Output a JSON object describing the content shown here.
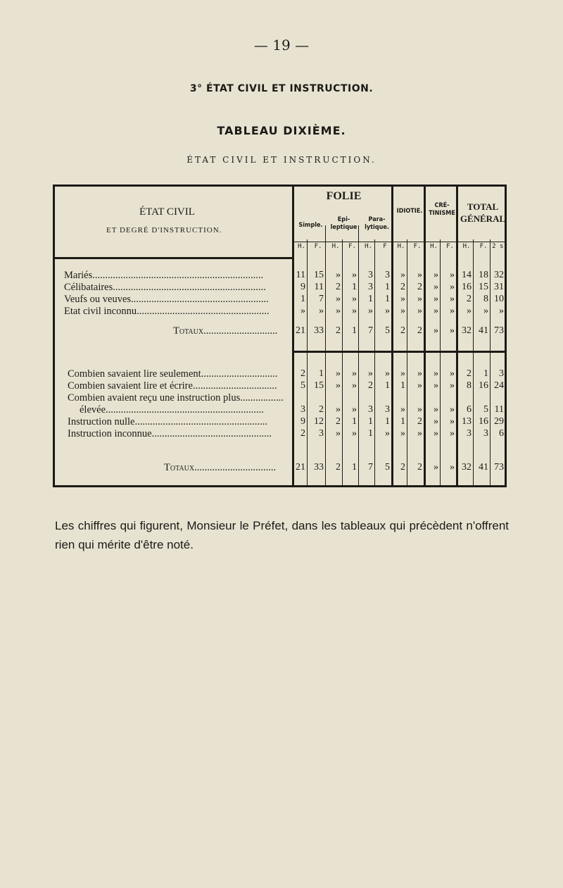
{
  "page_number": "— 19 —",
  "section_heading": "3° ÉTAT CIVIL ET INSTRUCTION.",
  "table_title": "TABLEAU DIXIÈME.",
  "table_subtitle": "ÉTAT CIVIL ET INSTRUCTION.",
  "table": {
    "stub_header_1": "ÉTAT CIVIL",
    "stub_header_2": "ET DEGRÉ D'INSTRUCTION.",
    "group_folie": "FOLIE",
    "sub_simple": "Simple.",
    "sub_epileptique": "Epi-\nleptique",
    "sub_paralytique": "Para-\nlytique.",
    "group_idiotie": "IDIOTIE.",
    "group_cretinisme": "CRÉ-\nTINISME",
    "group_total": "TOTAL\nGÉNÉRAL",
    "col_sex": [
      "H.",
      "F.",
      "H.",
      "F.",
      "H.",
      "F",
      "H.",
      "F.",
      "H.",
      "F.",
      "H.",
      "F.",
      "2 s."
    ],
    "section1": [
      {
        "label": "Mariés",
        "values": [
          "11",
          "15",
          "»",
          "»",
          "3",
          "3",
          "»",
          "»",
          "»",
          "»",
          "14",
          "18",
          "32"
        ]
      },
      {
        "label": "Célibataires",
        "values": [
          "9",
          "11",
          "2",
          "1",
          "3",
          "1",
          "2",
          "2",
          "»",
          "»",
          "16",
          "15",
          "31"
        ]
      },
      {
        "label": "Veufs ou veuves",
        "values": [
          "1",
          "7",
          "»",
          "»",
          "1",
          "1",
          "»",
          "»",
          "»",
          "»",
          "2",
          "8",
          "10"
        ]
      },
      {
        "label": "Etat civil inconnu",
        "values": [
          "»",
          "»",
          "»",
          "»",
          "»",
          "»",
          "»",
          "»",
          "»",
          "»",
          "»",
          "»",
          "»"
        ]
      }
    ],
    "section1_total": {
      "label": "Totaux",
      "values": [
        "21",
        "33",
        "2",
        "1",
        "7",
        "5",
        "2",
        "2",
        "»",
        "»",
        "32",
        "41",
        "73"
      ]
    },
    "section2": [
      {
        "label": "Combien savaient lire seulement",
        "values": [
          "2",
          "1",
          "»",
          "»",
          "»",
          "»",
          "»",
          "»",
          "»",
          "»",
          "2",
          "1",
          "3"
        ]
      },
      {
        "label": "Combien savaient lire et écrire",
        "values": [
          "5",
          "15",
          "»",
          "»",
          "2",
          "1",
          "1",
          "»",
          "»",
          "»",
          "8",
          "16",
          "24"
        ]
      },
      {
        "label": "Combien avaient reçu une instruction plus",
        "values": null
      },
      {
        "label": "élevée",
        "values": [
          "3",
          "2",
          "»",
          "»",
          "3",
          "3",
          "»",
          "»",
          "»",
          "»",
          "6",
          "5",
          "11"
        ]
      },
      {
        "label": "Instruction nulle",
        "values": [
          "9",
          "12",
          "2",
          "1",
          "1",
          "1",
          "1",
          "2",
          "»",
          "»",
          "13",
          "16",
          "29"
        ]
      },
      {
        "label": "Instruction inconnue",
        "values": [
          "2",
          "3",
          "»",
          "»",
          "1",
          "»",
          "»",
          "»",
          "»",
          "»",
          "3",
          "3",
          "6"
        ]
      }
    ],
    "section2_total": {
      "label": "Totaux",
      "values": [
        "21",
        "33",
        "2",
        "1",
        "7",
        "5",
        "2",
        "2",
        "»",
        "»",
        "32",
        "41",
        "73"
      ]
    }
  },
  "paragraph": "Les chiffres qui figurent, Monsieur le Préfet, dans les tableaux qui précèdent n'offrent rien qui mérite d'être noté."
}
